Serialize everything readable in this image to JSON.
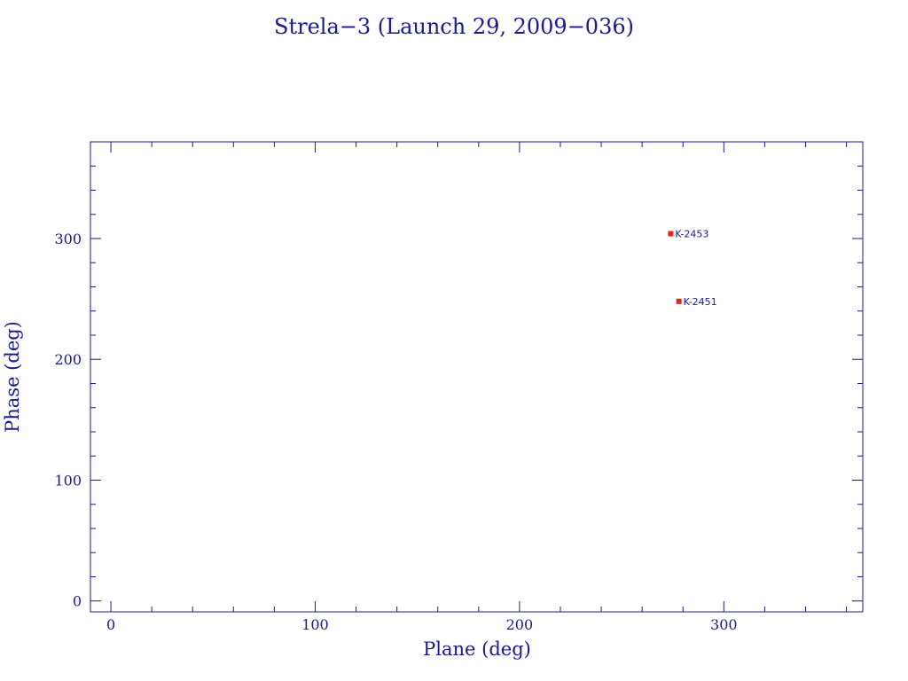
{
  "chart_data": {
    "type": "scatter",
    "title": "Strela−3 (Launch 29, 2009−036)",
    "xlabel": "Plane (deg)",
    "ylabel": "Phase (deg)",
    "xlim": [
      -10,
      368
    ],
    "ylim": [
      -9,
      380
    ],
    "x_ticks": [
      0,
      100,
      200,
      300
    ],
    "y_ticks": [
      0,
      100,
      200,
      300
    ],
    "x_tick_labels": [
      "0",
      "100",
      "200",
      "300"
    ],
    "y_tick_labels": [
      "0",
      "100",
      "200",
      "300"
    ],
    "x_minor_step": 20,
    "y_minor_step": 20,
    "grid": false,
    "legend": "none",
    "marker_color": "#e0281e",
    "axis_color": "#1a1a8c",
    "points": [
      {
        "x": 274,
        "y": 304,
        "label": "K-2453"
      },
      {
        "x": 278,
        "y": 248,
        "label": "K-2451"
      }
    ]
  }
}
